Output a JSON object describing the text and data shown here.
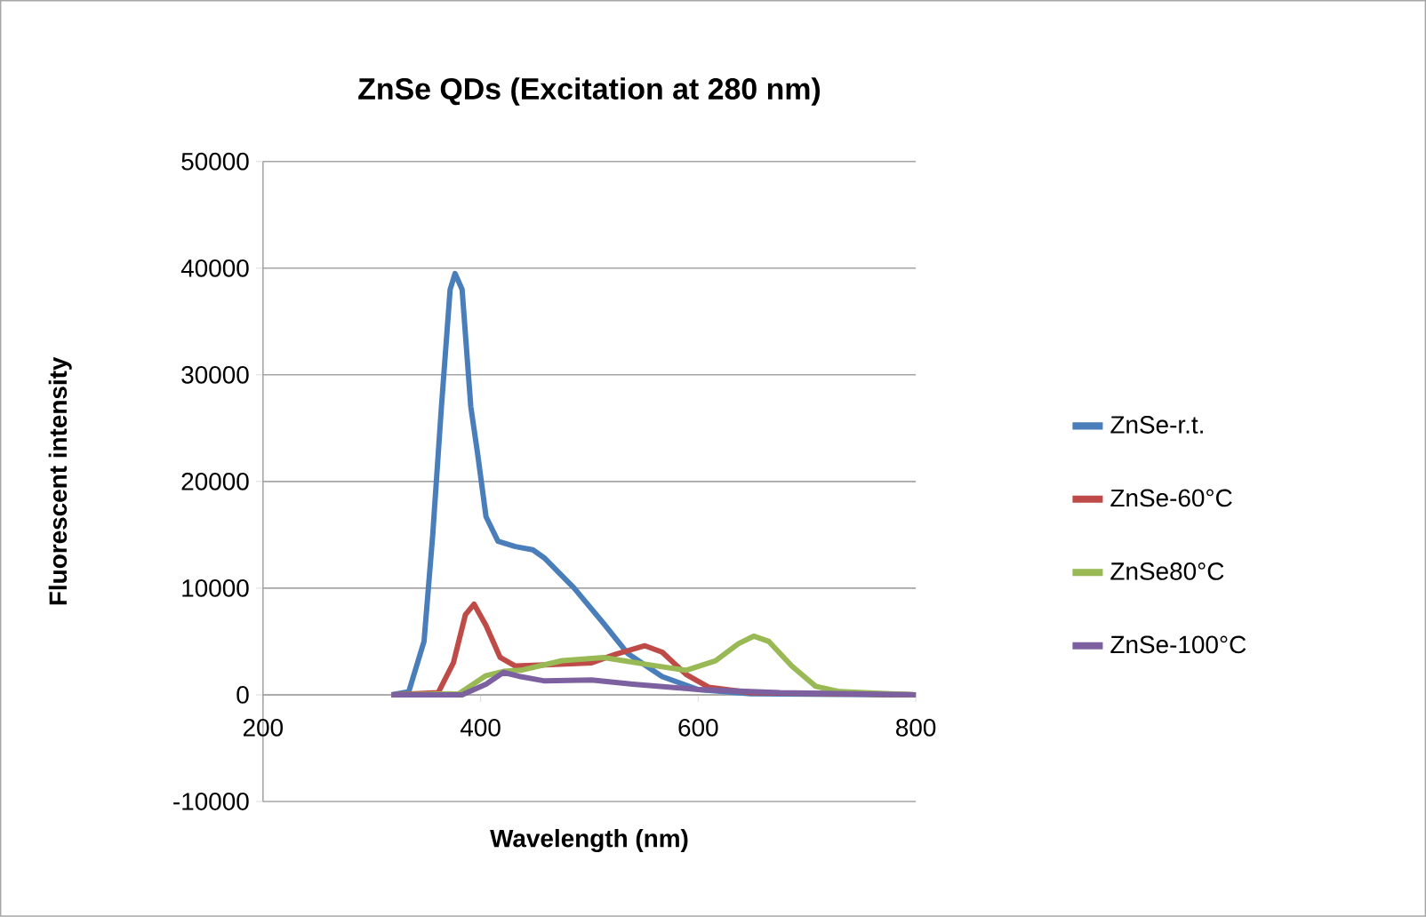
{
  "chart_data": {
    "type": "line",
    "title": "ZnSe QDs (Excitation at 280 nm)",
    "xlabel": "Wavelength (nm)",
    "ylabel": "Fluorescent intensity",
    "xlim": [
      200,
      800
    ],
    "xticks": [
      200,
      400,
      600,
      800
    ],
    "ylim": [
      -10000,
      50000
    ],
    "yticks": [
      -10000,
      0,
      10000,
      20000,
      30000,
      40000,
      50000
    ],
    "grid": "y",
    "legend": "right",
    "marker": "none",
    "line_style": "solid",
    "series": [
      {
        "name": "ZnSe-r.t.",
        "color": "#4a7ebb",
        "x": [
          318,
          334,
          348,
          356,
          364,
          372,
          376.5,
          383,
          391,
          397,
          405,
          416,
          432,
          448,
          459,
          486,
          513,
          535,
          567,
          600,
          648,
          800
        ],
        "values": [
          0,
          300,
          5000,
          15000,
          27000,
          38000,
          39500,
          38000,
          27000,
          22800,
          16700,
          14400,
          13900,
          13600,
          12800,
          10000,
          6700,
          3900,
          1700,
          500,
          100,
          0
        ]
      },
      {
        "name": "ZnSe-60°C",
        "color": "#be4b48",
        "x": [
          318,
          361,
          375,
          386,
          394,
          405,
          418,
          432,
          459,
          502,
          524,
          551,
          567,
          589,
          610,
          648,
          800
        ],
        "values": [
          0,
          200,
          3000,
          7500,
          8500,
          6500,
          3500,
          2700,
          2800,
          3000,
          3800,
          4600,
          4000,
          1900,
          700,
          200,
          0
        ]
      },
      {
        "name": "ZnSe80°C",
        "color": "#98b954",
        "x": [
          318,
          380,
          405,
          421,
          437,
          475,
          513,
          556,
          589,
          616,
          637,
          651,
          665,
          686,
          708,
          730,
          800
        ],
        "values": [
          0,
          100,
          1800,
          2200,
          2300,
          3200,
          3500,
          2800,
          2300,
          3200,
          4800,
          5500,
          5000,
          2700,
          800,
          300,
          0
        ]
      },
      {
        "name": "ZnSe-100°C",
        "color": "#7d60a0",
        "x": [
          318,
          383,
          405,
          421,
          437,
          459,
          502,
          540,
          600,
          675,
          800
        ],
        "values": [
          0,
          0,
          1000,
          2100,
          1700,
          1300,
          1400,
          1000,
          500,
          200,
          0
        ]
      }
    ]
  }
}
